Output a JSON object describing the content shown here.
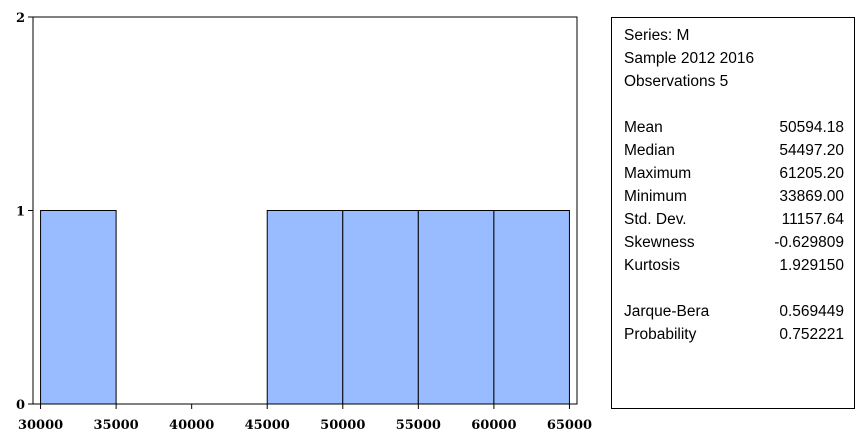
{
  "chart_data": {
    "type": "bar",
    "title": "",
    "xlabel": "",
    "ylabel": "",
    "bins": [
      {
        "from": 30000,
        "to": 35000,
        "count": 1
      },
      {
        "from": 35000,
        "to": 40000,
        "count": 0
      },
      {
        "from": 40000,
        "to": 45000,
        "count": 0
      },
      {
        "from": 45000,
        "to": 50000,
        "count": 1
      },
      {
        "from": 50000,
        "to": 55000,
        "count": 1
      },
      {
        "from": 55000,
        "to": 60000,
        "count": 1
      },
      {
        "from": 60000,
        "to": 65000,
        "count": 1
      }
    ],
    "xlim": [
      29500,
      65500
    ],
    "ylim": [
      0,
      2
    ],
    "x_ticks": [
      "30000",
      "35000",
      "40000",
      "45000",
      "50000",
      "55000",
      "60000",
      "65000"
    ],
    "y_ticks": [
      "0",
      "1",
      "2"
    ],
    "bar_color": "#99bbff",
    "grid": false
  },
  "stats": {
    "series": "Series: M",
    "sample": "Sample 2012 2016",
    "observations": "Observations 5",
    "rows_main": [
      {
        "label": "Mean",
        "value": "50594.18"
      },
      {
        "label": "Median",
        "value": "54497.20"
      },
      {
        "label": "Maximum",
        "value": "61205.20"
      },
      {
        "label": "Minimum",
        "value": "33869.00"
      },
      {
        "label": "Std. Dev.",
        "value": "11157.64"
      },
      {
        "label": "Skewness",
        "value": "-0.629809"
      },
      {
        "label": "Kurtosis",
        "value": "1.929150"
      }
    ],
    "rows_test": [
      {
        "label": "Jarque-Bera",
        "value": "0.569449"
      },
      {
        "label": "Probability",
        "value": "0.752221"
      }
    ]
  }
}
